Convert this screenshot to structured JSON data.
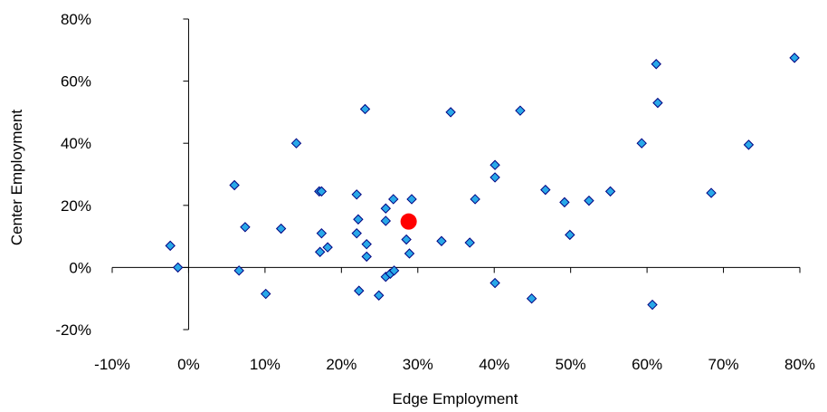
{
  "chart_data": {
    "type": "scatter",
    "xlabel": "Edge Employment",
    "ylabel": "Center Employment",
    "xlim": [
      -0.1,
      0.8
    ],
    "ylim": [
      -0.2,
      0.8
    ],
    "xticks": [
      -0.1,
      0,
      0.1,
      0.2,
      0.3,
      0.4,
      0.5,
      0.6,
      0.7,
      0.8
    ],
    "xtick_labels": [
      "-10%",
      "0%",
      "10%",
      "20%",
      "30%",
      "40%",
      "50%",
      "60%",
      "70%",
      "80%"
    ],
    "yticks": [
      -0.2,
      0,
      0.2,
      0.4,
      0.6,
      0.8
    ],
    "ytick_labels": [
      "-20%",
      "0%",
      "20%",
      "40%",
      "60%",
      "80%"
    ],
    "grid": false,
    "series": [
      {
        "marker": "diamond",
        "color": "#29A8E8",
        "edge_color": "#000080",
        "points": [
          [
            -0.024,
            0.07
          ],
          [
            -0.014,
            0.0
          ],
          [
            0.06,
            0.265
          ],
          [
            0.066,
            -0.01
          ],
          [
            0.074,
            0.13
          ],
          [
            0.101,
            -0.085
          ],
          [
            0.121,
            0.125
          ],
          [
            0.141,
            0.4
          ],
          [
            0.171,
            0.245
          ],
          [
            0.174,
            0.245
          ],
          [
            0.172,
            0.05
          ],
          [
            0.174,
            0.11
          ],
          [
            0.182,
            0.065
          ],
          [
            0.22,
            0.235
          ],
          [
            0.22,
            0.11
          ],
          [
            0.222,
            0.155
          ],
          [
            0.223,
            -0.075
          ],
          [
            0.231,
            0.51
          ],
          [
            0.233,
            0.075
          ],
          [
            0.233,
            0.035
          ],
          [
            0.249,
            -0.09
          ],
          [
            0.258,
            0.19
          ],
          [
            0.258,
            0.15
          ],
          [
            0.258,
            -0.03
          ],
          [
            0.264,
            -0.02
          ],
          [
            0.268,
            0.22
          ],
          [
            0.269,
            -0.01
          ],
          [
            0.285,
            0.09
          ],
          [
            0.289,
            0.045
          ],
          [
            0.292,
            0.22
          ],
          [
            0.331,
            0.085
          ],
          [
            0.343,
            0.5
          ],
          [
            0.368,
            0.08
          ],
          [
            0.375,
            0.22
          ],
          [
            0.401,
            0.33
          ],
          [
            0.401,
            0.29
          ],
          [
            0.401,
            -0.05
          ],
          [
            0.434,
            0.505
          ],
          [
            0.449,
            -0.1
          ],
          [
            0.467,
            0.25
          ],
          [
            0.492,
            0.21
          ],
          [
            0.499,
            0.105
          ],
          [
            0.524,
            0.215
          ],
          [
            0.552,
            0.245
          ],
          [
            0.593,
            0.4
          ],
          [
            0.607,
            -0.12
          ],
          [
            0.612,
            0.655
          ],
          [
            0.614,
            0.53
          ],
          [
            0.684,
            0.24
          ],
          [
            0.733,
            0.395
          ],
          [
            0.793,
            0.675
          ]
        ]
      },
      {
        "marker": "circle",
        "color": "#FF0000",
        "points": [
          [
            0.288,
            0.148
          ]
        ]
      }
    ]
  }
}
